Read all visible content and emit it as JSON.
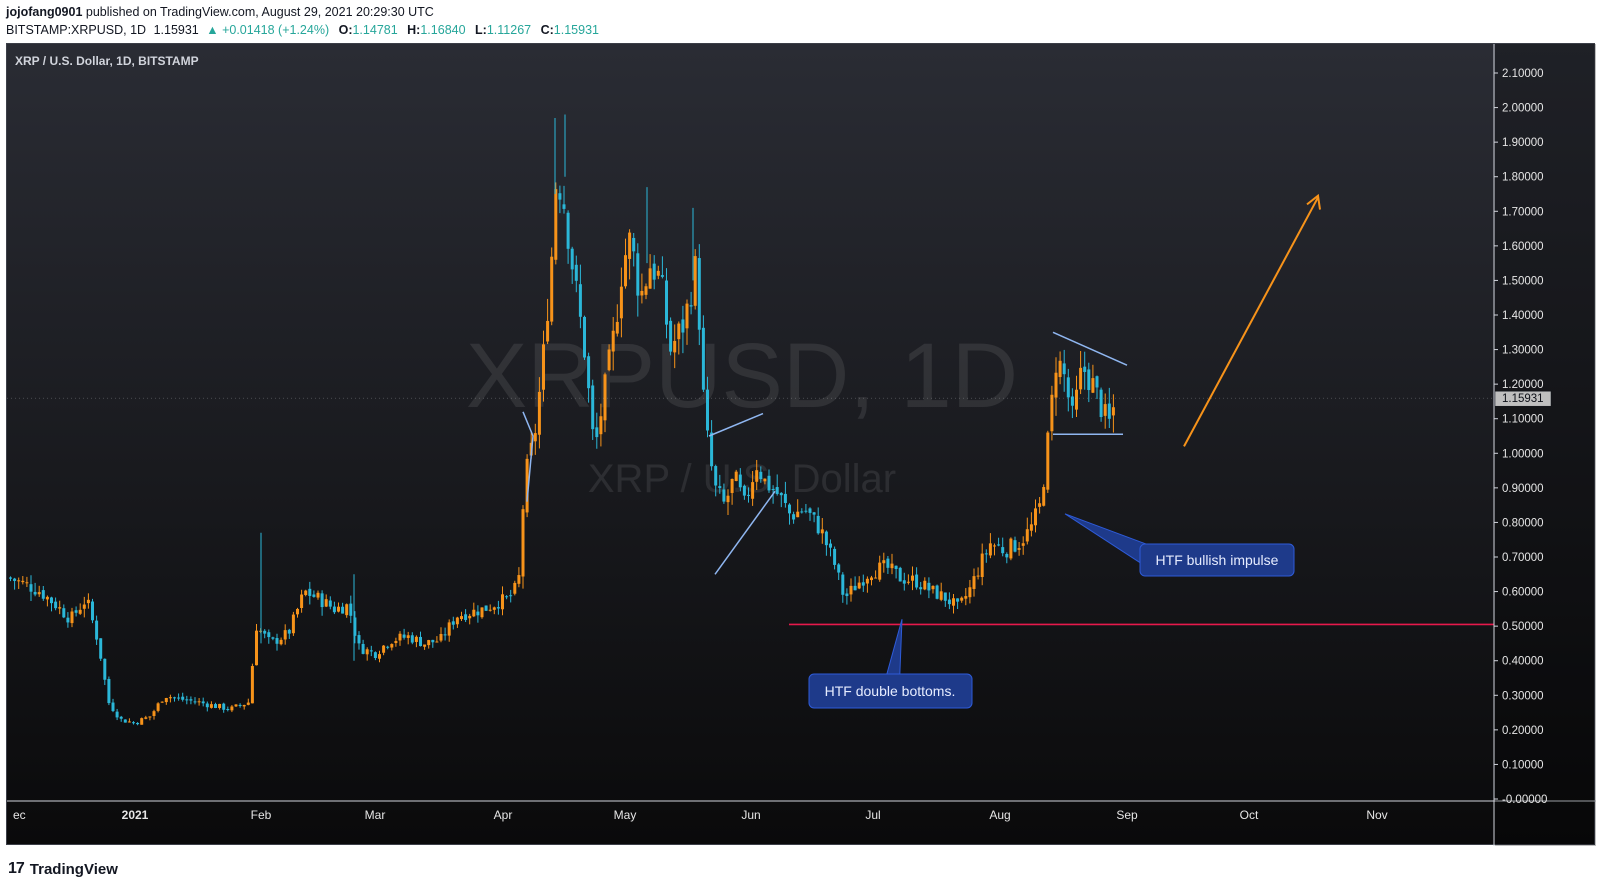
{
  "header": {
    "author": "jojofang0901",
    "published_text": "published on TradingView.com, August 29, 2021 20:29:30 UTC",
    "symbol_line": "BITSTAMP:XRPUSD, 1D",
    "last": "1.15931",
    "change": "▲ +0.01418 (+1.24%)",
    "o_label": "O:",
    "o_value": "1.14781",
    "h_label": "H:",
    "h_value": "1.16840",
    "l_label": "L:",
    "l_value": "1.11267",
    "c_label": "C:",
    "c_value": "1.15931"
  },
  "chart_title": "XRP / U.S. Dollar, 1D, BITSTAMP",
  "watermark": {
    "line1": "XRPUSD, 1D",
    "line2": "XRP / U.S. Dollar"
  },
  "footer": {
    "brand": "TradingView",
    "logo_mark": "17"
  },
  "colors": {
    "up": "#f7931a",
    "down": "#2bb7d8",
    "support": "#e6194b",
    "pattern": "#8fb6f0",
    "arrow": "#f7931a",
    "callout": "#1e3a8a"
  },
  "annotations": {
    "double_bottom": "HTF double bottoms.",
    "impulse": "HTF bullish impulse"
  },
  "price_label": "1.15931",
  "chart_data": {
    "type": "candlestick",
    "title": "XRP / U.S. Dollar, 1D, BITSTAMP",
    "ylim": [
      0,
      2.15
    ],
    "y_ticks": [
      "2.10000",
      "2.00000",
      "1.90000",
      "1.80000",
      "1.70000",
      "1.60000",
      "1.50000",
      "1.40000",
      "1.30000",
      "1.20000",
      "1.10000",
      "1.00000",
      "0.90000",
      "0.80000",
      "0.70000",
      "0.60000",
      "0.50000",
      "0.40000",
      "0.30000",
      "0.20000",
      "0.10000",
      "-0.00000"
    ],
    "x_ticks": [
      "ec",
      "2021",
      "Feb",
      "Mar",
      "Apr",
      "May",
      "Jun",
      "Jul",
      "Aug",
      "Sep",
      "Oct",
      "Nov"
    ],
    "support_level": 0.505,
    "key_points": [
      {
        "date": "Dec",
        "price": 0.62
      },
      {
        "date": "Late Dec",
        "price": 0.22
      },
      {
        "date": "Mid Jan",
        "price": 0.28
      },
      {
        "date": "Feb",
        "price": 0.55
      },
      {
        "date": "Mar",
        "price": 0.45
      },
      {
        "date": "Early Apr",
        "price": 0.95
      },
      {
        "date": "Mid Apr",
        "price": 1.87
      },
      {
        "date": "Late Apr",
        "price": 1.1
      },
      {
        "date": "Early May",
        "price": 1.62
      },
      {
        "date": "Mid May",
        "price": 1.55
      },
      {
        "date": "Late May",
        "price": 0.85
      },
      {
        "date": "Jun",
        "price": 0.95
      },
      {
        "date": "Late Jun",
        "price": 0.55
      },
      {
        "date": "Jul",
        "price": 0.65
      },
      {
        "date": "Late Jul",
        "price": 0.55
      },
      {
        "date": "Aug",
        "price": 0.72
      },
      {
        "date": "Mid Aug",
        "price": 1.25
      },
      {
        "date": "Late Aug",
        "price": 1.16
      }
    ]
  }
}
